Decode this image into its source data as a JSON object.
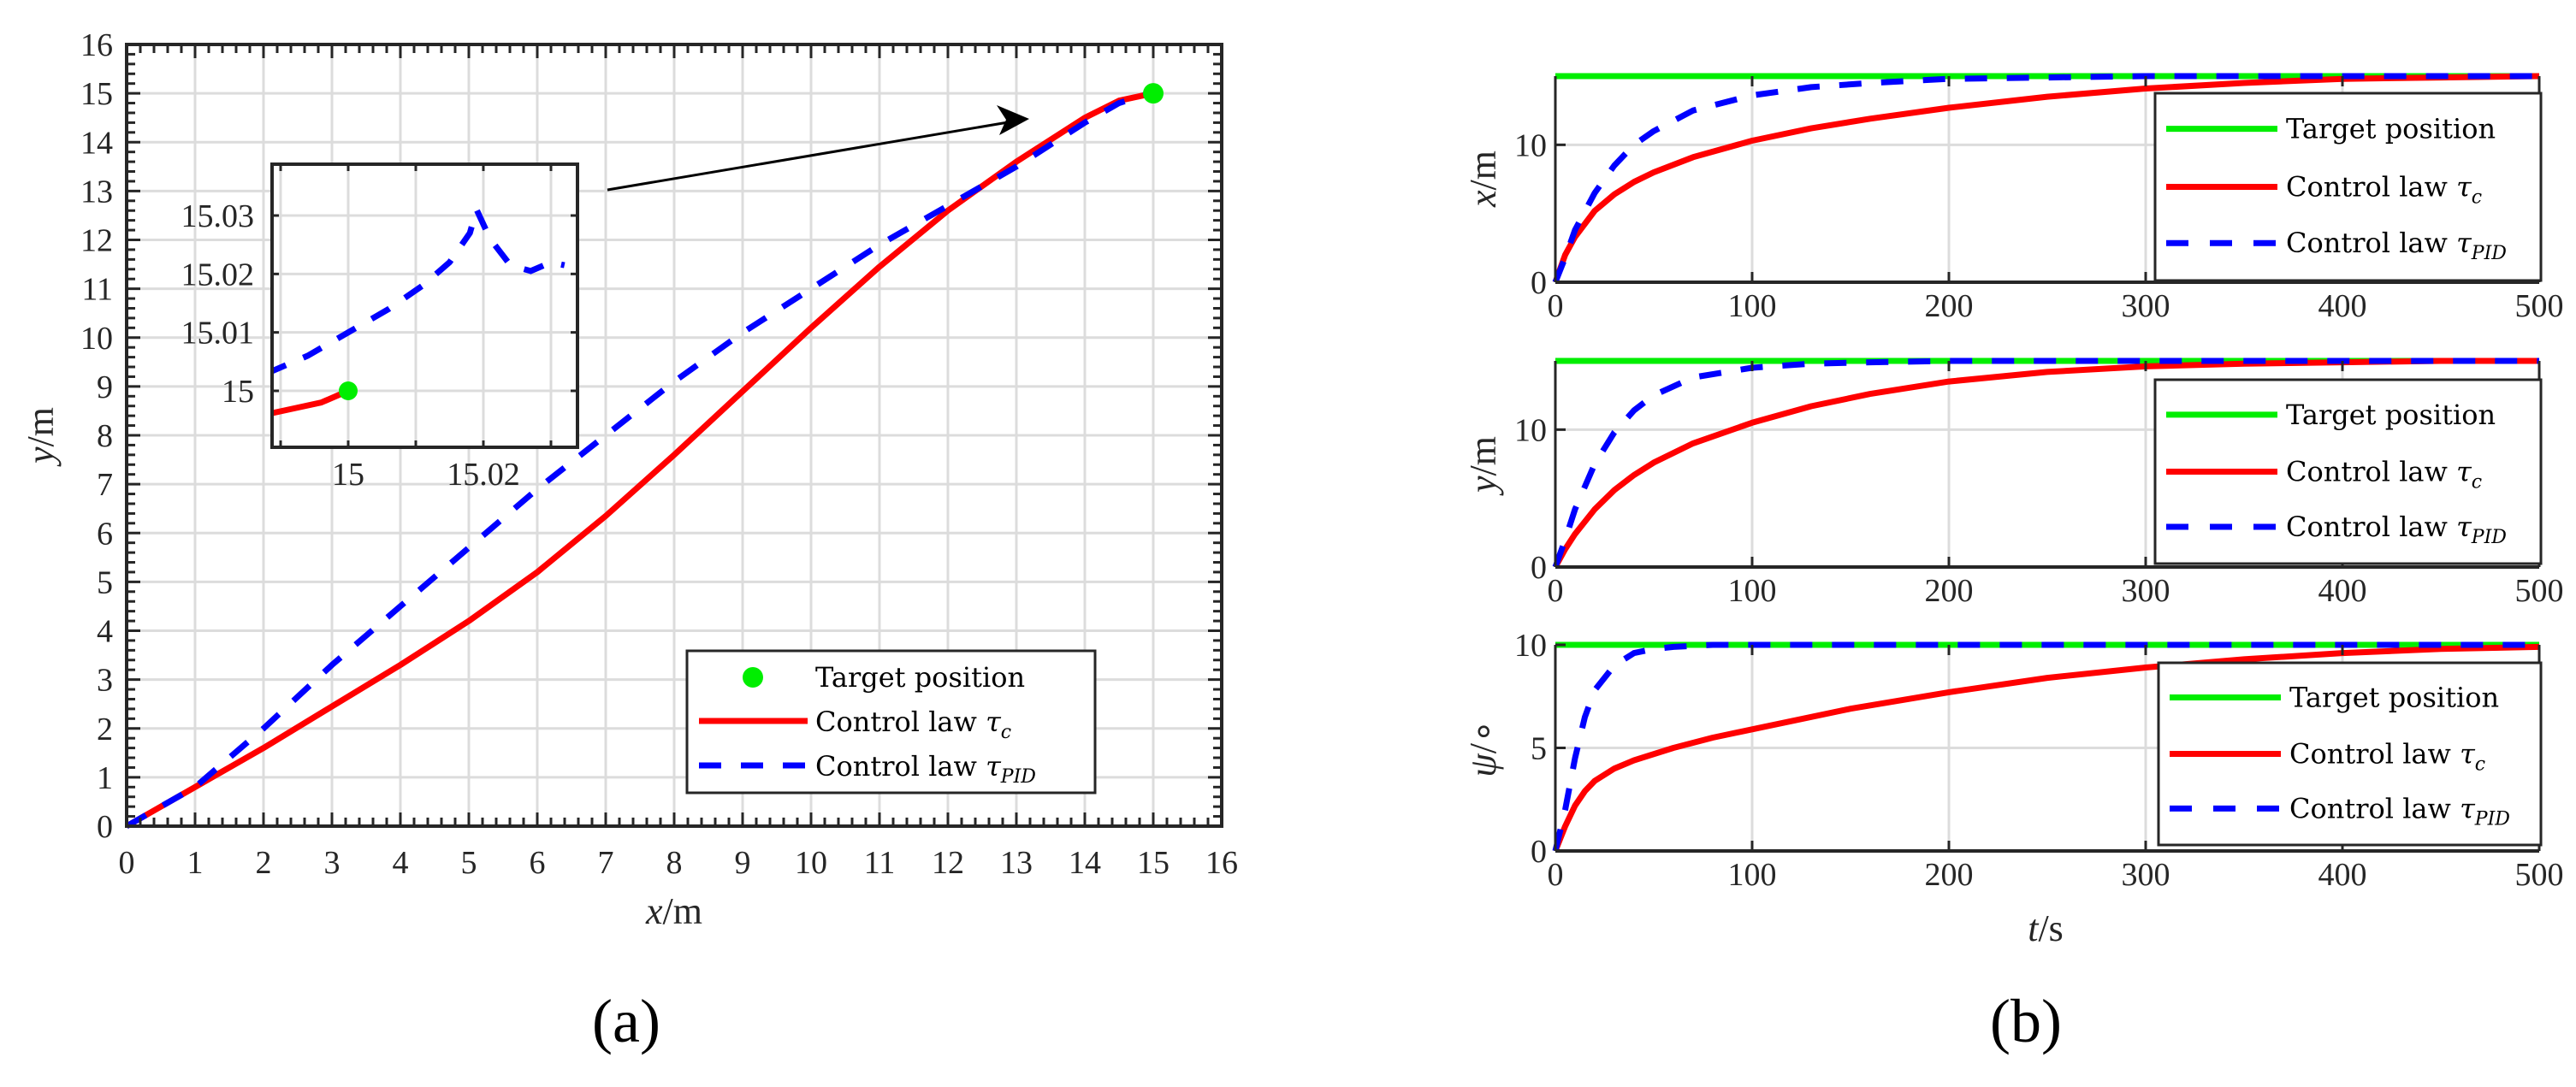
{
  "colors": {
    "target": "#00ee00",
    "tau_c": "#ff0000",
    "tau_pid": "#0000ff",
    "axis": "#262626",
    "grid": "#dcdcdc"
  },
  "legend": {
    "target": "Target position",
    "tau_c_prefix": "Control law ",
    "tau_c_symbol": "τ",
    "tau_c_sub": "c",
    "tau_pid_prefix": "Control law ",
    "tau_pid_symbol": "τ",
    "tau_pid_sub": "PID"
  },
  "panels": {
    "a": {
      "label": "(a)",
      "xlabel_var": "x",
      "xlabel_unit": "/m",
      "ylabel_var": "y",
      "ylabel_unit": "/m"
    },
    "b": {
      "label": "(b)",
      "xlabel_var": "t",
      "xlabel_unit": "/s",
      "ylabels": [
        {
          "var": "x",
          "unit": "/m"
        },
        {
          "var": "y",
          "unit": "/m"
        },
        {
          "var": "ψ",
          "unit": "/∘"
        }
      ]
    }
  },
  "chart_data": [
    {
      "id": "a",
      "type": "line",
      "title": "",
      "xlabel": "x/m",
      "ylabel": "y/m",
      "xlim": [
        0,
        16
      ],
      "ylim": [
        0,
        16
      ],
      "xticks": [
        0,
        1,
        2,
        3,
        4,
        5,
        6,
        7,
        8,
        9,
        10,
        11,
        12,
        13,
        14,
        15,
        16
      ],
      "yticks": [
        0,
        1,
        2,
        3,
        4,
        5,
        6,
        7,
        8,
        9,
        10,
        11,
        12,
        13,
        14,
        15,
        16
      ],
      "grid": true,
      "legend_position": "lower right",
      "target": {
        "name": "Target position",
        "x": 15,
        "y": 15
      },
      "series": [
        {
          "name": "Control law τc",
          "style": "solid",
          "x": [
            0,
            1,
            2,
            3,
            4,
            5,
            6,
            7,
            8,
            9,
            10,
            11,
            12,
            13,
            14,
            14.5,
            15
          ],
          "y": [
            0,
            0.8,
            1.6,
            2.45,
            3.3,
            4.2,
            5.2,
            6.35,
            7.6,
            8.9,
            10.2,
            11.45,
            12.6,
            13.6,
            14.5,
            14.85,
            15
          ]
        },
        {
          "name": "Control law τPID",
          "style": "dashed",
          "x": [
            0,
            1,
            2,
            3,
            4,
            5,
            6,
            7,
            8,
            9,
            10,
            11,
            12,
            13,
            14,
            14.5,
            15
          ],
          "y": [
            0,
            0.8,
            2.0,
            3.3,
            4.5,
            5.7,
            6.9,
            8.0,
            9.1,
            10.1,
            11.0,
            11.9,
            12.7,
            13.5,
            14.4,
            14.8,
            15.02
          ]
        }
      ],
      "inset": {
        "xlim": [
          14.988,
          15.034
        ],
        "ylim": [
          14.991,
          15.034
        ],
        "xticks_labeled": [
          "15",
          "15.02"
        ],
        "xticks": [
          14.99,
          15.0,
          15.01,
          15.02,
          15.03
        ],
        "yticks": [
          15,
          15.01,
          15.02,
          15.03
        ],
        "ytick_labels": [
          "15",
          "15.01",
          "15.02",
          "15.03"
        ],
        "series": [
          {
            "name": "Control law τc",
            "x": [
              14.988,
              14.992,
              14.996,
              15.0
            ],
            "y": [
              14.996,
              14.997,
              14.998,
              15.0
            ]
          },
          {
            "name": "Control law τPID",
            "x": [
              14.988,
              14.994,
              15.0,
              15.006,
              15.011,
              15.015,
              15.018,
              15.019,
              15.021,
              15.024,
              15.027,
              15.03,
              15.032
            ],
            "y": [
              15.003,
              15.006,
              15.01,
              15.014,
              15.018,
              15.022,
              15.027,
              15.031,
              15.026,
              15.0215,
              15.0205,
              15.022,
              15.0215
            ]
          }
        ],
        "target": {
          "x": 15,
          "y": 15
        }
      },
      "annotation": {
        "type": "arrow",
        "from": "inset",
        "to": [
          13.3,
          14.3
        ]
      }
    },
    {
      "id": "b1",
      "type": "line",
      "xlabel": "",
      "ylabel": "x/m",
      "xlim": [
        0,
        500
      ],
      "ylim": [
        0,
        15
      ],
      "xticks": [
        0,
        100,
        200,
        300,
        400,
        500
      ],
      "yticks": [
        0,
        10
      ],
      "grid": true,
      "legend_position": "upper right",
      "series": [
        {
          "name": "Target position",
          "style": "solid",
          "t": [
            0,
            500
          ],
          "values": [
            15,
            15
          ]
        },
        {
          "name": "Control law τc",
          "style": "solid",
          "t": [
            0,
            5,
            10,
            20,
            30,
            40,
            50,
            70,
            100,
            130,
            160,
            200,
            250,
            300,
            350,
            400,
            450,
            500
          ],
          "values": [
            0,
            2.0,
            3.3,
            5.2,
            6.4,
            7.3,
            8.0,
            9.1,
            10.3,
            11.2,
            11.9,
            12.7,
            13.5,
            14.1,
            14.5,
            14.8,
            14.9,
            15
          ]
        },
        {
          "name": "Control law τPID",
          "style": "dashed",
          "t": [
            0,
            5,
            10,
            20,
            30,
            40,
            50,
            70,
            100,
            130,
            160,
            200,
            250,
            300,
            400,
            500
          ],
          "values": [
            0,
            1.8,
            3.8,
            6.5,
            8.5,
            10.0,
            11.0,
            12.5,
            13.6,
            14.2,
            14.5,
            14.8,
            14.9,
            15,
            15,
            15
          ]
        }
      ]
    },
    {
      "id": "b2",
      "type": "line",
      "xlabel": "",
      "ylabel": "y/m",
      "xlim": [
        0,
        500
      ],
      "ylim": [
        0,
        15
      ],
      "xticks": [
        0,
        100,
        200,
        300,
        400,
        500
      ],
      "yticks": [
        0,
        10
      ],
      "grid": true,
      "legend_position": "upper right",
      "series": [
        {
          "name": "Target position",
          "style": "solid",
          "t": [
            0,
            500
          ],
          "values": [
            15,
            15
          ]
        },
        {
          "name": "Control law τc",
          "style": "solid",
          "t": [
            0,
            5,
            10,
            20,
            30,
            40,
            50,
            70,
            100,
            130,
            160,
            200,
            250,
            300,
            350,
            400,
            450,
            500
          ],
          "values": [
            0,
            1.3,
            2.4,
            4.2,
            5.6,
            6.7,
            7.6,
            9.0,
            10.5,
            11.7,
            12.6,
            13.5,
            14.2,
            14.6,
            14.8,
            14.9,
            15,
            15
          ]
        },
        {
          "name": "Control law τPID",
          "style": "dashed",
          "t": [
            0,
            5,
            10,
            20,
            30,
            40,
            50,
            70,
            100,
            130,
            160,
            200,
            250,
            300,
            400,
            500
          ],
          "values": [
            0,
            2.0,
            4.2,
            7.5,
            9.8,
            11.4,
            12.5,
            13.8,
            14.5,
            14.8,
            14.9,
            15,
            15,
            15,
            15,
            15
          ]
        }
      ]
    },
    {
      "id": "b3",
      "type": "line",
      "xlabel": "t/s",
      "ylabel": "ψ/∘",
      "xlim": [
        0,
        500
      ],
      "ylim": [
        0,
        10
      ],
      "xticks": [
        0,
        100,
        200,
        300,
        400,
        500
      ],
      "yticks": [
        0,
        5,
        10
      ],
      "grid": true,
      "legend_position": "upper right",
      "series": [
        {
          "name": "Target position",
          "style": "solid",
          "t": [
            0,
            500
          ],
          "values": [
            10,
            10
          ]
        },
        {
          "name": "Control law τc",
          "style": "solid",
          "t": [
            0,
            5,
            10,
            15,
            20,
            30,
            40,
            60,
            80,
            100,
            150,
            200,
            250,
            300,
            350,
            400,
            450,
            500
          ],
          "values": [
            0,
            1.2,
            2.2,
            2.9,
            3.4,
            4.0,
            4.4,
            5.0,
            5.5,
            5.9,
            6.9,
            7.7,
            8.4,
            8.9,
            9.3,
            9.6,
            9.8,
            9.9
          ]
        },
        {
          "name": "Control law τPID",
          "style": "dashed",
          "t": [
            0,
            5,
            10,
            15,
            20,
            30,
            40,
            50,
            60,
            80,
            100,
            150,
            200,
            300,
            400,
            500
          ],
          "values": [
            0,
            2.0,
            4.5,
            6.5,
            7.8,
            9.0,
            9.6,
            9.8,
            9.9,
            10,
            10,
            10,
            10,
            10,
            10,
            10
          ]
        }
      ]
    }
  ]
}
